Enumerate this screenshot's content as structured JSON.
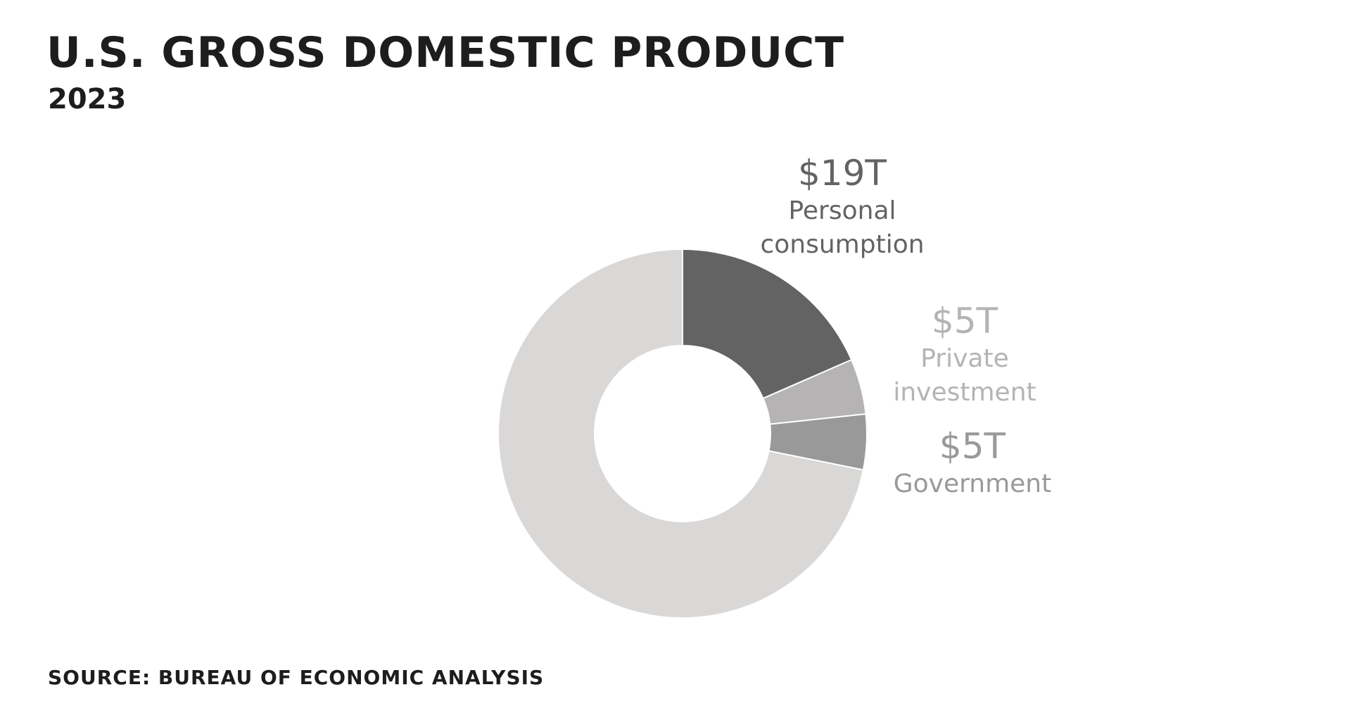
{
  "chart_data": {
    "type": "donut",
    "title": "U.S. GROSS DOMESTIC PRODUCT",
    "subtitle": "2023",
    "source": "SOURCE: BUREAU OF ECONOMIC ANALYSIS",
    "categories": [
      "Personal consumption",
      "Private investment",
      "Government",
      null
    ],
    "values": [
      19,
      5,
      5,
      74
    ],
    "value_labels": [
      "$19T",
      "$5T",
      "$5T",
      null
    ],
    "colors": [
      "#636363",
      "#b5b3b3",
      "#999999",
      "#dad7d7"
    ]
  }
}
